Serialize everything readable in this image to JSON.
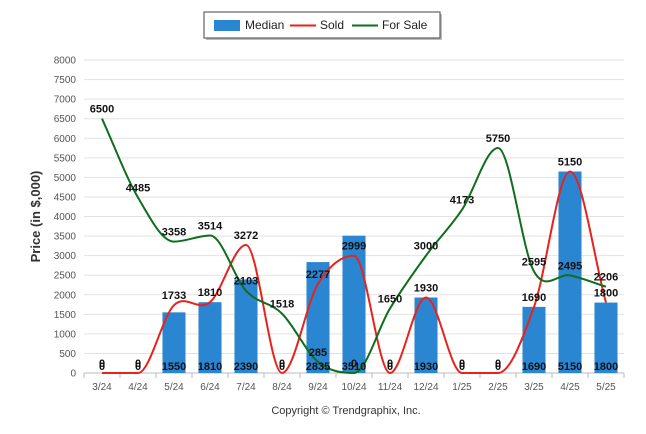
{
  "chart_data": {
    "type": "bar",
    "categories": [
      "3/24",
      "4/24",
      "5/24",
      "6/24",
      "7/24",
      "8/24",
      "9/24",
      "10/24",
      "11/24",
      "12/24",
      "1/25",
      "2/25",
      "3/25",
      "4/25",
      "5/25"
    ],
    "ylabel": "Price (in $,000)",
    "ylim": [
      0,
      8000
    ],
    "yticks": [
      0,
      500,
      1000,
      1500,
      2000,
      2500,
      3000,
      3500,
      4000,
      4500,
      5000,
      5500,
      6000,
      6500,
      7000,
      7500,
      8000
    ],
    "grid": true,
    "legend_position": "top-center",
    "series": [
      {
        "name": "Median",
        "kind": "bar",
        "color": "#2b86d1",
        "values": [
          0,
          0,
          1550,
          1810,
          2390,
          0,
          2835,
          3510,
          0,
          1930,
          0,
          0,
          1690,
          5150,
          1800
        ]
      },
      {
        "name": "Sold",
        "kind": "line",
        "color": "#e8221c",
        "values": [
          0,
          0,
          1733,
          1810,
          3272,
          0,
          2277,
          2999,
          0,
          1930,
          0,
          0,
          1690,
          5150,
          1800
        ]
      },
      {
        "name": "For Sale",
        "kind": "line",
        "color": "#0f6e1e",
        "values": [
          6500,
          4485,
          3358,
          3514,
          2103,
          1518,
          285,
          0,
          1650,
          3000,
          4173,
          5750,
          2595,
          2495,
          2206
        ]
      }
    ],
    "data_labels": {
      "Median": [
        "0",
        "0",
        "1550",
        "1810",
        "2390",
        "0",
        "2835",
        "3510",
        "0",
        "1930",
        "0",
        "0",
        "1690",
        "5150",
        "1800"
      ],
      "Sold": [
        "0",
        "0",
        "1733",
        "1810",
        "3272",
        "0",
        "2277",
        "2999",
        "0",
        "1930",
        "0",
        "0",
        "1690",
        "5150",
        "1800"
      ],
      "For Sale": [
        "6500",
        "4485",
        "3358",
        "3514",
        "2103",
        "1518",
        "285",
        "0",
        "1650",
        "3000",
        "4173",
        "5750",
        "2595",
        "2495",
        "2206"
      ]
    }
  },
  "credit": "Copyright © Trendgraphix, Inc."
}
